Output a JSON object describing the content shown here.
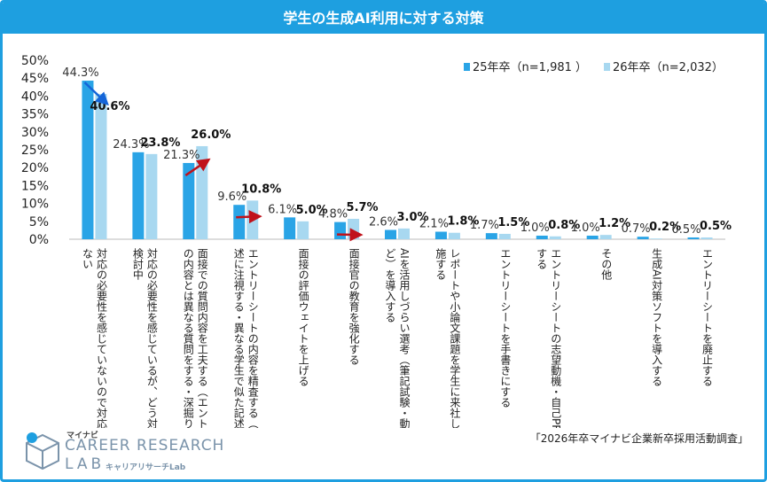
{
  "title": "学生の生成AI利用に対する対策",
  "source": "「2026年卒マイナビ企業新卒採用活動調査」",
  "logo": {
    "top": "マイナビ",
    "main": "CAREER RESEARCH",
    "lab": "LAB",
    "sub": "キャリアリサーチLab"
  },
  "colors": {
    "title_bg": "#1e9fe0",
    "series_25": "#2aa4e6",
    "series_26": "#a8d8f0",
    "arrow_down": "#1565d8",
    "arrow_up": "#c0121b"
  },
  "chart_data": {
    "type": "bar",
    "ylim": [
      0,
      50
    ],
    "yticks": [
      "0%",
      "5%",
      "10%",
      "15%",
      "20%",
      "25%",
      "30%",
      "35%",
      "40%",
      "45%",
      "50%"
    ],
    "categories": [
      "対応の必要性を感じていないので対応する予定もない",
      "対応の必要性を感じているが、どう対応すべきか検討中",
      "面接での質問内容を工夫する（エントリーシートの内容とは異なる質問をする・深掘り質問をする等）",
      "エントリーシートの内容を精査する（不自然な記述に注視する・異なる学生で似た記述がないか）",
      "面接の評価ウェイトを上げる",
      "面接官の教育を強化する",
      "AIを活用しづらい選考（筆記試験・動画ESなど）を導入する",
      "レポートや小論文課題を学生に来社してもらい実施する",
      "エントリーシートを手書きにする",
      "エントリーシートの志望動機・自己PR欄を廃止する",
      "その他",
      "生成AI対策ソフトを導入する",
      "エントリーシートを廃止する"
    ],
    "series": [
      {
        "name": "25年卒（n=1,981 ）",
        "values": [
          44.3,
          24.3,
          21.3,
          9.6,
          6.1,
          4.8,
          2.6,
          2.1,
          1.7,
          1.0,
          1.0,
          0.7,
          0.5
        ],
        "labels": [
          "44.3%",
          "24.3%",
          "21.3%",
          "9.6%",
          "6.1%",
          "4.8%",
          "2.6%",
          "2.1%",
          "1.7%",
          "1.0%",
          "1.0%",
          "0.7%",
          "0.5%"
        ]
      },
      {
        "name": "26年卒（n=2,032）",
        "values": [
          40.6,
          23.8,
          26.0,
          10.8,
          5.0,
          5.7,
          3.0,
          1.8,
          1.5,
          0.8,
          1.2,
          0.2,
          0.5
        ],
        "labels": [
          "40.6%",
          "23.8%",
          "26.0%",
          "10.8%",
          "5.0%",
          "5.7%",
          "3.0%",
          "1.8%",
          "1.5%",
          "0.8%",
          "1.2%",
          "0.2%",
          "0.5%"
        ]
      }
    ],
    "arrows": [
      {
        "category_index": 0,
        "direction": "down"
      },
      {
        "category_index": 2,
        "direction": "up"
      },
      {
        "category_index": 3,
        "direction": "up"
      },
      {
        "category_index": 5,
        "direction": "up"
      }
    ],
    "legend": "top-right"
  }
}
